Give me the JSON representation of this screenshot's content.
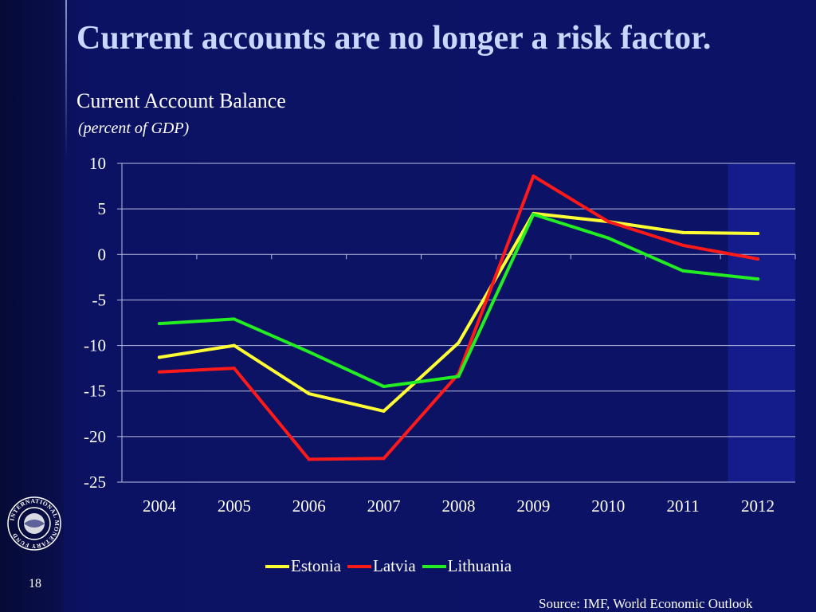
{
  "slide": {
    "title": "Current accounts are no longer a risk factor.",
    "number": "18",
    "source": "Source: IMF, World Economic Outlook",
    "logo_text": "INTERNATIONAL MONETARY FUND"
  },
  "chart_data": {
    "type": "line",
    "title": "Current Account Balance",
    "subtitle": "(percent of  GDP)",
    "x": [
      "2004",
      "2005",
      "2006",
      "2007",
      "2008",
      "2009",
      "2010",
      "2011",
      "2012"
    ],
    "ylim": [
      -25,
      10
    ],
    "yticks": [
      10,
      5,
      0,
      -5,
      -10,
      -15,
      -20,
      -25
    ],
    "grid": true,
    "legend_position": "bottom",
    "projection_shaded_from": "2012",
    "series": [
      {
        "name": "Estonia",
        "color": "#ffff33",
        "values": [
          -11.3,
          -10.0,
          -15.3,
          -17.2,
          -9.7,
          4.5,
          3.6,
          2.4,
          2.3
        ]
      },
      {
        "name": "Latvia",
        "color": "#ff1a1a",
        "values": [
          -12.9,
          -12.5,
          -22.5,
          -22.4,
          -13.1,
          8.6,
          3.6,
          1.0,
          -0.5
        ]
      },
      {
        "name": "Lithuania",
        "color": "#22ee22",
        "values": [
          -7.6,
          -7.1,
          -10.7,
          -14.5,
          -13.4,
          4.4,
          1.8,
          -1.8,
          -2.7
        ]
      }
    ]
  },
  "colors": {
    "title": "#c9d7ff",
    "background": "#0c1266",
    "projection_shade": "#141c8c",
    "gridline": "#b8bde0"
  }
}
